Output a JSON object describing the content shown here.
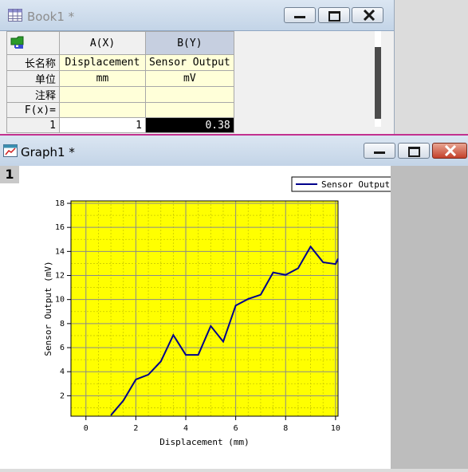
{
  "book": {
    "title": "Book1 *",
    "columns": [
      {
        "header": "A(X)",
        "long_name": "Displacement",
        "unit": "mm"
      },
      {
        "header": "B(Y)",
        "long_name": "Sensor Output",
        "unit": "mV"
      }
    ],
    "row_labels": [
      "长名称",
      "单位",
      "注释",
      "F(x)="
    ],
    "row_number": "1",
    "values": [
      "1",
      "0.38"
    ]
  },
  "graph": {
    "title": "Graph1 *",
    "layer_label": "1"
  },
  "chart_data": {
    "type": "line",
    "xlabel": "Displacement (mm)",
    "ylabel": "Sensor Output (mV)",
    "xlim": [
      -0.6,
      10.1
    ],
    "ylim": [
      0.3,
      18.2
    ],
    "xticks": [
      0,
      2,
      4,
      6,
      8,
      10
    ],
    "yticks": [
      2,
      4,
      6,
      8,
      10,
      12,
      14,
      16,
      18
    ],
    "grid": true,
    "legend_position": "top-right",
    "background": "#ffff00",
    "series": [
      {
        "name": "Sensor Output",
        "color": "#00008b",
        "x": [
          1,
          1.5,
          2,
          2.5,
          3,
          3.5,
          4,
          4.5,
          5,
          5.5,
          6,
          6.5,
          7,
          7.5,
          8,
          8.5,
          9,
          9.5,
          10,
          10.1
        ],
        "y": [
          0.38,
          1.6,
          3.35,
          3.75,
          4.85,
          7.05,
          5.4,
          5.4,
          7.8,
          6.5,
          9.5,
          10.05,
          10.4,
          12.25,
          12.05,
          12.6,
          14.4,
          13.1,
          12.95,
          13.4
        ]
      }
    ]
  }
}
